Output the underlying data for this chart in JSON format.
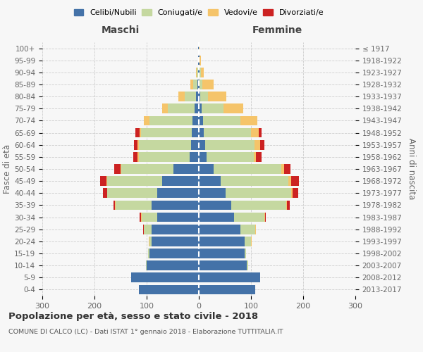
{
  "age_groups": [
    "0-4",
    "5-9",
    "10-14",
    "15-19",
    "20-24",
    "25-29",
    "30-34",
    "35-39",
    "40-44",
    "45-49",
    "50-54",
    "55-59",
    "60-64",
    "65-69",
    "70-74",
    "75-79",
    "80-84",
    "85-89",
    "90-94",
    "95-99",
    "100+"
  ],
  "birth_years": [
    "2013-2017",
    "2008-2012",
    "2003-2007",
    "1998-2002",
    "1993-1997",
    "1988-1992",
    "1983-1987",
    "1978-1982",
    "1973-1977",
    "1968-1972",
    "1963-1967",
    "1958-1962",
    "1953-1957",
    "1948-1952",
    "1943-1947",
    "1938-1942",
    "1933-1937",
    "1928-1932",
    "1923-1927",
    "1918-1922",
    "≤ 1917"
  ],
  "colors": {
    "celibe": "#4472a8",
    "coniugato": "#c5d8a0",
    "vedovo": "#f5c46a",
    "divorziato": "#cc2222"
  },
  "male": {
    "celibe": [
      115,
      130,
      100,
      95,
      90,
      90,
      80,
      90,
      80,
      70,
      48,
      17,
      15,
      13,
      12,
      8,
      5,
      3,
      2,
      1,
      1
    ],
    "coniugato": [
      0,
      0,
      2,
      2,
      5,
      15,
      30,
      70,
      95,
      105,
      100,
      98,
      100,
      98,
      82,
      52,
      22,
      8,
      2,
      0,
      0
    ],
    "vedovo": [
      0,
      0,
      0,
      0,
      1,
      1,
      1,
      1,
      1,
      2,
      2,
      3,
      2,
      3,
      12,
      10,
      12,
      5,
      1,
      0,
      0
    ],
    "divorziato": [
      0,
      0,
      0,
      0,
      0,
      1,
      2,
      2,
      8,
      12,
      12,
      8,
      7,
      8,
      0,
      0,
      0,
      0,
      0,
      0,
      0
    ]
  },
  "female": {
    "nubile": [
      108,
      118,
      92,
      88,
      88,
      80,
      68,
      62,
      52,
      42,
      28,
      15,
      12,
      10,
      8,
      5,
      3,
      2,
      2,
      1,
      0
    ],
    "coniugata": [
      0,
      0,
      2,
      3,
      12,
      28,
      58,
      105,
      125,
      130,
      130,
      90,
      95,
      90,
      72,
      42,
      15,
      5,
      2,
      0,
      0
    ],
    "vedova": [
      0,
      0,
      0,
      0,
      1,
      1,
      1,
      2,
      3,
      5,
      5,
      5,
      10,
      15,
      32,
      38,
      35,
      22,
      6,
      3,
      2
    ],
    "divorziata": [
      0,
      0,
      0,
      0,
      0,
      1,
      2,
      5,
      10,
      15,
      12,
      10,
      8,
      5,
      0,
      0,
      0,
      0,
      0,
      0,
      0
    ]
  },
  "xlim": 300,
  "title": "Popolazione per età, sesso e stato civile - 2018",
  "subtitle": "COMUNE DI CALCO (LC) - Dati ISTAT 1° gennaio 2018 - Elaborazione TUTTITALIA.IT",
  "ylabel_left": "Fasce di età",
  "ylabel_right": "Anni di nascita",
  "xlabel_left": "Maschi",
  "xlabel_right": "Femmine",
  "bg_color": "#f7f7f7",
  "grid_color": "#cccccc"
}
